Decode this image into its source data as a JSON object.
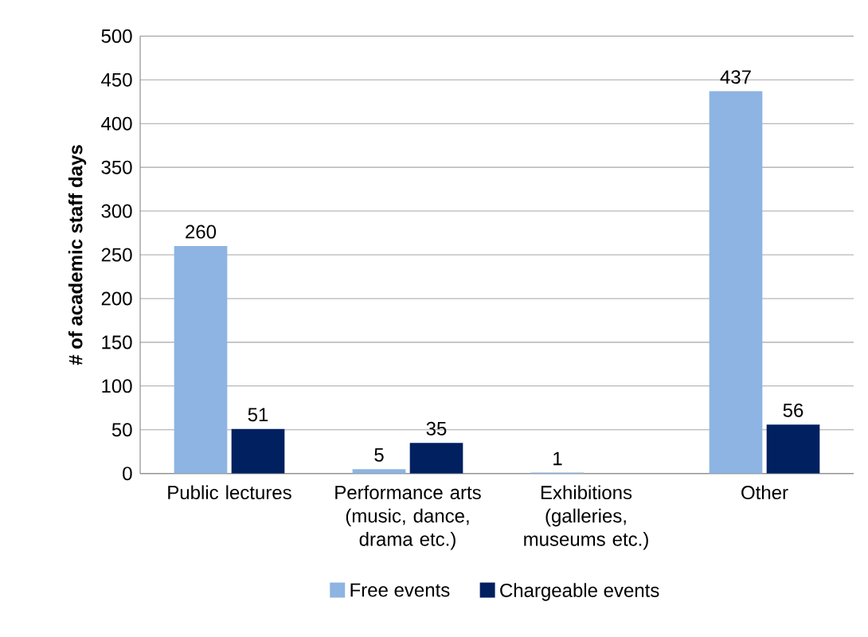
{
  "chart_data": {
    "type": "bar",
    "ylabel": "# of academic staff days",
    "categories": [
      "Public lectures",
      "Performance arts (music, dance, drama etc.)",
      "Exhibitions (galleries, museums etc.)",
      "Other"
    ],
    "series": [
      {
        "name": "Free events",
        "color": "#8db4e2",
        "values": [
          260,
          5,
          1,
          437
        ],
        "value_labels": [
          "260",
          "5",
          "1",
          "437"
        ]
      },
      {
        "name": "Chargeable events",
        "color": "#002060",
        "values": [
          51,
          35,
          null,
          56
        ],
        "value_labels": [
          "51",
          "35",
          null,
          "56"
        ]
      }
    ],
    "ylim": [
      0,
      500
    ],
    "yticks": [
      0,
      50,
      100,
      150,
      200,
      250,
      300,
      350,
      400,
      450,
      500
    ],
    "grid": "y",
    "legend": "bottom"
  }
}
